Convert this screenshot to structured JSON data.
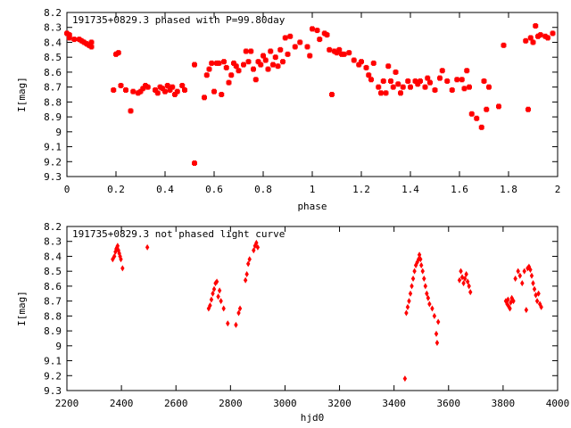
{
  "chart_data": [
    {
      "type": "scatter",
      "title": "191735+0829.3 phased with P=99.80day",
      "xlabel": "phase",
      "ylabel": "I[mag]",
      "xlim": [
        0,
        2
      ],
      "ylim": [
        9.3,
        8.2
      ],
      "y_inverted": true,
      "xticks": [
        "0",
        "0.2",
        "0.4",
        "0.6",
        "0.8",
        "1",
        "1.2",
        "1.4",
        "1.6",
        "1.8",
        "2"
      ],
      "yticks": [
        "8.2",
        "8.3",
        "8.4",
        "8.5",
        "8.6",
        "8.7",
        "8.8",
        "8.9",
        "9",
        "9.1",
        "9.2",
        "9.3"
      ],
      "marker": "filled-circle",
      "color": "#ff0000",
      "points": [
        [
          0.0,
          8.34
        ],
        [
          0.01,
          8.35
        ],
        [
          0.01,
          8.37
        ],
        [
          0.03,
          8.38
        ],
        [
          0.05,
          8.38
        ],
        [
          0.06,
          8.39
        ],
        [
          0.07,
          8.4
        ],
        [
          0.08,
          8.41
        ],
        [
          0.09,
          8.42
        ],
        [
          0.1,
          8.4
        ],
        [
          0.1,
          8.43
        ],
        [
          0.19,
          8.72
        ],
        [
          0.2,
          8.48
        ],
        [
          0.21,
          8.47
        ],
        [
          0.22,
          8.69
        ],
        [
          0.24,
          8.72
        ],
        [
          0.26,
          8.86
        ],
        [
          0.27,
          8.73
        ],
        [
          0.29,
          8.74
        ],
        [
          0.3,
          8.73
        ],
        [
          0.31,
          8.71
        ],
        [
          0.32,
          8.69
        ],
        [
          0.33,
          8.7
        ],
        [
          0.36,
          8.72
        ],
        [
          0.37,
          8.74
        ],
        [
          0.38,
          8.7
        ],
        [
          0.39,
          8.71
        ],
        [
          0.4,
          8.73
        ],
        [
          0.41,
          8.69
        ],
        [
          0.42,
          8.72
        ],
        [
          0.43,
          8.7
        ],
        [
          0.44,
          8.75
        ],
        [
          0.45,
          8.73
        ],
        [
          0.47,
          8.69
        ],
        [
          0.48,
          8.72
        ],
        [
          0.52,
          9.21
        ],
        [
          0.52,
          8.55
        ],
        [
          0.56,
          8.77
        ],
        [
          0.57,
          8.62
        ],
        [
          0.58,
          8.58
        ],
        [
          0.59,
          8.54
        ],
        [
          0.6,
          8.73
        ],
        [
          0.61,
          8.54
        ],
        [
          0.62,
          8.54
        ],
        [
          0.63,
          8.75
        ],
        [
          0.64,
          8.53
        ],
        [
          0.65,
          8.57
        ],
        [
          0.66,
          8.67
        ],
        [
          0.67,
          8.62
        ],
        [
          0.68,
          8.54
        ],
        [
          0.69,
          8.56
        ],
        [
          0.7,
          8.59
        ],
        [
          0.72,
          8.55
        ],
        [
          0.73,
          8.46
        ],
        [
          0.74,
          8.53
        ],
        [
          0.75,
          8.46
        ],
        [
          0.76,
          8.58
        ],
        [
          0.77,
          8.65
        ],
        [
          0.78,
          8.53
        ],
        [
          0.79,
          8.55
        ],
        [
          0.8,
          8.49
        ],
        [
          0.81,
          8.52
        ],
        [
          0.82,
          8.58
        ],
        [
          0.83,
          8.46
        ],
        [
          0.84,
          8.55
        ],
        [
          0.85,
          8.5
        ],
        [
          0.86,
          8.56
        ],
        [
          0.87,
          8.45
        ],
        [
          0.88,
          8.53
        ],
        [
          0.89,
          8.37
        ],
        [
          0.9,
          8.48
        ],
        [
          0.91,
          8.36
        ],
        [
          0.93,
          8.43
        ],
        [
          0.95,
          8.4
        ],
        [
          0.98,
          8.43
        ],
        [
          0.99,
          8.49
        ],
        [
          1.0,
          8.31
        ],
        [
          1.02,
          8.32
        ],
        [
          1.03,
          8.38
        ],
        [
          1.05,
          8.34
        ],
        [
          1.06,
          8.35
        ],
        [
          1.07,
          8.45
        ],
        [
          1.08,
          8.75
        ],
        [
          1.09,
          8.46
        ],
        [
          1.1,
          8.47
        ],
        [
          1.11,
          8.45
        ],
        [
          1.12,
          8.48
        ],
        [
          1.13,
          8.48
        ],
        [
          1.15,
          8.47
        ],
        [
          1.17,
          8.52
        ],
        [
          1.19,
          8.55
        ],
        [
          1.2,
          8.53
        ],
        [
          1.22,
          8.57
        ],
        [
          1.23,
          8.62
        ],
        [
          1.24,
          8.65
        ],
        [
          1.25,
          8.54
        ],
        [
          1.27,
          8.7
        ],
        [
          1.28,
          8.74
        ],
        [
          1.29,
          8.66
        ],
        [
          1.3,
          8.74
        ],
        [
          1.31,
          8.56
        ],
        [
          1.32,
          8.66
        ],
        [
          1.33,
          8.7
        ],
        [
          1.34,
          8.6
        ],
        [
          1.35,
          8.68
        ],
        [
          1.36,
          8.74
        ],
        [
          1.37,
          8.7
        ],
        [
          1.39,
          8.66
        ],
        [
          1.4,
          8.7
        ],
        [
          1.42,
          8.66
        ],
        [
          1.43,
          8.68
        ],
        [
          1.44,
          8.66
        ],
        [
          1.46,
          8.7
        ],
        [
          1.47,
          8.64
        ],
        [
          1.48,
          8.67
        ],
        [
          1.5,
          8.72
        ],
        [
          1.52,
          8.64
        ],
        [
          1.53,
          8.59
        ],
        [
          1.55,
          8.66
        ],
        [
          1.57,
          8.72
        ],
        [
          1.59,
          8.65
        ],
        [
          1.61,
          8.65
        ],
        [
          1.62,
          8.71
        ],
        [
          1.63,
          8.59
        ],
        [
          1.64,
          8.7
        ],
        [
          1.65,
          8.88
        ],
        [
          1.67,
          8.91
        ],
        [
          1.69,
          8.97
        ],
        [
          1.7,
          8.66
        ],
        [
          1.71,
          8.85
        ],
        [
          1.72,
          8.7
        ],
        [
          1.76,
          8.83
        ],
        [
          1.78,
          8.42
        ],
        [
          1.87,
          8.39
        ],
        [
          1.88,
          8.85
        ],
        [
          1.89,
          8.37
        ],
        [
          1.9,
          8.4
        ],
        [
          1.91,
          8.29
        ],
        [
          1.92,
          8.36
        ],
        [
          1.93,
          8.35
        ],
        [
          1.95,
          8.36
        ],
        [
          1.96,
          8.37
        ],
        [
          1.98,
          8.34
        ]
      ]
    },
    {
      "type": "scatter",
      "title": "191735+0829.3 not phased light curve",
      "xlabel": "hjd0",
      "ylabel": "I[mag]",
      "xlim": [
        2200,
        4000
      ],
      "ylim": [
        9.3,
        8.2
      ],
      "y_inverted": true,
      "xticks": [
        "2200",
        "2400",
        "2600",
        "2800",
        "3000",
        "3200",
        "3400",
        "3600",
        "3800",
        "4000"
      ],
      "yticks": [
        "8.2",
        "8.3",
        "8.4",
        "8.5",
        "8.6",
        "8.7",
        "8.8",
        "8.9",
        "9",
        "9.1",
        "9.2",
        "9.3"
      ],
      "marker": "diamond",
      "color": "#ff0000",
      "points": [
        [
          2368,
          8.42
        ],
        [
          2374,
          8.4
        ],
        [
          2378,
          8.37
        ],
        [
          2381,
          8.35
        ],
        [
          2384,
          8.34
        ],
        [
          2386,
          8.33
        ],
        [
          2389,
          8.36
        ],
        [
          2392,
          8.38
        ],
        [
          2395,
          8.4
        ],
        [
          2398,
          8.42
        ],
        [
          2404,
          8.48
        ],
        [
          2495,
          8.34
        ],
        [
          2720,
          8.75
        ],
        [
          2725,
          8.73
        ],
        [
          2730,
          8.69
        ],
        [
          2735,
          8.65
        ],
        [
          2740,
          8.62
        ],
        [
          2745,
          8.58
        ],
        [
          2750,
          8.57
        ],
        [
          2755,
          8.67
        ],
        [
          2760,
          8.63
        ],
        [
          2765,
          8.7
        ],
        [
          2775,
          8.75
        ],
        [
          2790,
          8.85
        ],
        [
          2820,
          8.86
        ],
        [
          2830,
          8.78
        ],
        [
          2835,
          8.75
        ],
        [
          2855,
          8.56
        ],
        [
          2860,
          8.52
        ],
        [
          2865,
          8.45
        ],
        [
          2870,
          8.42
        ],
        [
          2885,
          8.36
        ],
        [
          2890,
          8.33
        ],
        [
          2895,
          8.31
        ],
        [
          2900,
          8.34
        ],
        [
          3440,
          9.22
        ],
        [
          3445,
          8.78
        ],
        [
          3450,
          8.74
        ],
        [
          3455,
          8.7
        ],
        [
          3460,
          8.65
        ],
        [
          3465,
          8.6
        ],
        [
          3470,
          8.55
        ],
        [
          3475,
          8.5
        ],
        [
          3480,
          8.46
        ],
        [
          3485,
          8.44
        ],
        [
          3490,
          8.42
        ],
        [
          3493,
          8.39
        ],
        [
          3497,
          8.42
        ],
        [
          3500,
          8.46
        ],
        [
          3505,
          8.5
        ],
        [
          3510,
          8.55
        ],
        [
          3515,
          8.6
        ],
        [
          3520,
          8.65
        ],
        [
          3525,
          8.68
        ],
        [
          3530,
          8.72
        ],
        [
          3540,
          8.75
        ],
        [
          3548,
          8.8
        ],
        [
          3555,
          8.92
        ],
        [
          3558,
          8.98
        ],
        [
          3562,
          8.84
        ],
        [
          3640,
          8.56
        ],
        [
          3645,
          8.5
        ],
        [
          3650,
          8.54
        ],
        [
          3655,
          8.58
        ],
        [
          3660,
          8.55
        ],
        [
          3665,
          8.52
        ],
        [
          3670,
          8.57
        ],
        [
          3675,
          8.6
        ],
        [
          3680,
          8.64
        ],
        [
          3810,
          8.7
        ],
        [
          3815,
          8.72
        ],
        [
          3818,
          8.69
        ],
        [
          3822,
          8.74
        ],
        [
          3825,
          8.75
        ],
        [
          3828,
          8.71
        ],
        [
          3832,
          8.68
        ],
        [
          3838,
          8.7
        ],
        [
          3845,
          8.55
        ],
        [
          3855,
          8.5
        ],
        [
          3862,
          8.53
        ],
        [
          3870,
          8.58
        ],
        [
          3878,
          8.5
        ],
        [
          3885,
          8.76
        ],
        [
          3890,
          8.48
        ],
        [
          3895,
          8.47
        ],
        [
          3900,
          8.49
        ],
        [
          3905,
          8.53
        ],
        [
          3910,
          8.58
        ],
        [
          3915,
          8.62
        ],
        [
          3920,
          8.66
        ],
        [
          3925,
          8.7
        ],
        [
          3930,
          8.65
        ],
        [
          3935,
          8.72
        ],
        [
          3940,
          8.74
        ]
      ]
    }
  ]
}
